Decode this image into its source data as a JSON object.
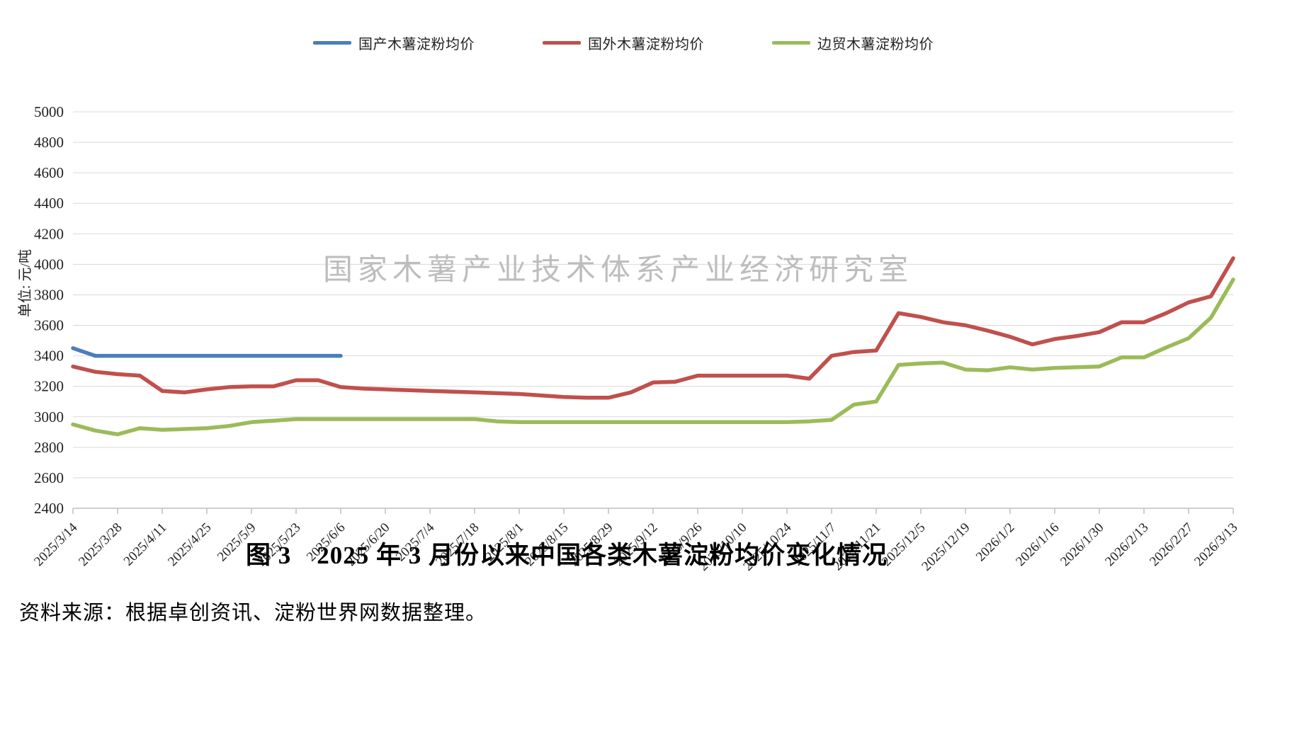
{
  "figure": {
    "title": "图 3　2025 年 3 月份以来中国各类木薯淀粉均价变化情况",
    "source": "资料来源：根据卓创资讯、淀粉世界网数据整理。",
    "watermark": "国家木薯产业技术体系产业经济研究室"
  },
  "chart_data": {
    "type": "line",
    "title": "",
    "xlabel": "",
    "ylabel": "单位: 元/吨",
    "ylim": [
      2400,
      5000
    ],
    "ytick_step": 200,
    "grid": true,
    "legend_position": "top",
    "x_tick_labels": [
      "2025/3/14",
      "2025/3/28",
      "2025/4/11",
      "2025/4/25",
      "2025/5/9",
      "2025/5/23",
      "2025/6/6",
      "2025/6/20",
      "2025/7/4",
      "2025/7/18",
      "2025/8/1",
      "2025/8/15",
      "2025/8/29",
      "2025/9/12",
      "2025/9/26",
      "2025/10/10",
      "2025/10/24",
      "2025/11/7",
      "2025/11/21",
      "2025/12/5",
      "2025/12/19",
      "2026/1/2",
      "2026/1/16",
      "2026/1/30",
      "2026/2/13",
      "2026/2/27",
      "2026/3/13"
    ],
    "x": [
      "2025/3/14",
      "2025/3/21",
      "2025/3/28",
      "2025/4/4",
      "2025/4/11",
      "2025/4/18",
      "2025/4/25",
      "2025/5/2",
      "2025/5/9",
      "2025/5/16",
      "2025/5/23",
      "2025/5/30",
      "2025/6/6",
      "2025/6/13",
      "2025/6/20",
      "2025/6/27",
      "2025/7/4",
      "2025/7/11",
      "2025/7/18",
      "2025/7/25",
      "2025/8/1",
      "2025/8/8",
      "2025/8/15",
      "2025/8/22",
      "2025/8/29",
      "2025/9/5",
      "2025/9/12",
      "2025/9/19",
      "2025/9/26",
      "2025/10/3",
      "2025/10/10",
      "2025/10/17",
      "2025/10/24",
      "2025/10/31",
      "2025/11/7",
      "2025/11/14",
      "2025/11/21",
      "2025/11/28",
      "2025/12/5",
      "2025/12/12",
      "2025/12/19",
      "2025/12/26",
      "2026/1/2",
      "2026/1/9",
      "2026/1/16",
      "2026/1/23",
      "2026/1/30",
      "2026/2/6",
      "2026/2/13",
      "2026/2/20",
      "2026/2/27",
      "2026/3/6",
      "2026/3/13"
    ],
    "series": [
      {
        "name": "国产木薯淀粉均价",
        "color": "#4a7ebb",
        "values": [
          3450,
          3400,
          3400,
          3400,
          3400,
          3400,
          3400,
          3400,
          3400,
          3400,
          3400,
          3400,
          3400,
          null,
          null,
          null,
          null,
          null,
          null,
          null,
          null,
          null,
          null,
          null,
          null,
          null,
          null,
          null,
          null,
          null,
          null,
          null,
          null,
          null,
          null,
          null,
          null,
          null,
          null,
          null,
          null,
          null,
          null,
          null,
          null,
          null,
          null,
          null,
          null,
          null,
          null,
          null,
          null
        ]
      },
      {
        "name": "国外木薯淀粉均价",
        "color": "#c0504d",
        "values": [
          3330,
          3295,
          3280,
          3270,
          3170,
          3160,
          3180,
          3195,
          3200,
          3200,
          3240,
          3240,
          3195,
          3185,
          3180,
          3175,
          3170,
          3165,
          3160,
          3155,
          3150,
          3140,
          3130,
          3125,
          3125,
          3160,
          3225,
          3230,
          3270,
          3270,
          3270,
          3270,
          3270,
          3250,
          3400,
          3425,
          3435,
          3680,
          3655,
          3620,
          3600,
          3565,
          3525,
          3475,
          3510,
          3530,
          3555,
          3620,
          3620,
          3680,
          3750,
          3790,
          4040
        ]
      },
      {
        "name": "边贸木薯淀粉均价",
        "color": "#9bbb59",
        "values": [
          2950,
          2910,
          2885,
          2925,
          2915,
          2920,
          2925,
          2940,
          2965,
          2975,
          2985,
          2985,
          2985,
          2985,
          2985,
          2985,
          2985,
          2985,
          2985,
          2970,
          2965,
          2965,
          2965,
          2965,
          2965,
          2965,
          2965,
          2965,
          2965,
          2965,
          2965,
          2965,
          2965,
          2970,
          2980,
          3080,
          3100,
          3340,
          3350,
          3355,
          3310,
          3305,
          3325,
          3310,
          3320,
          3325,
          3330,
          3390,
          3390,
          3455,
          3515,
          3650,
          3900
        ]
      }
    ]
  }
}
